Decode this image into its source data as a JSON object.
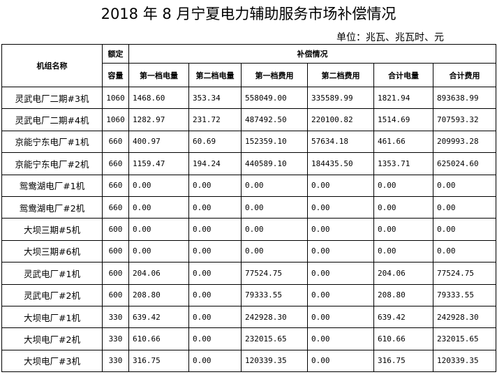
{
  "title": "2018 年 8 月宁夏电力辅助服务市场补偿情况",
  "unit": "单位：兆瓦、兆瓦时、元",
  "headers": {
    "name": "机组名称",
    "capacity_top": "额定",
    "capacity_bottom": "容量",
    "group": "补偿情况",
    "columns": [
      "第一档电量",
      "第二档电量",
      "第一档费用",
      "第二档费用",
      "合计电量",
      "合计费用"
    ]
  },
  "rows": [
    {
      "name": "灵武电厂二期#3机",
      "capacity": "1060",
      "values": [
        "1468.60",
        "353.34",
        "558049.00",
        "335589.99",
        "1821.94",
        "893638.99"
      ]
    },
    {
      "name": "灵武电厂二期#4机",
      "capacity": "1060",
      "values": [
        "1282.97",
        "231.72",
        "487492.50",
        "220100.82",
        "1514.69",
        "707593.32"
      ]
    },
    {
      "name": "京能宁东电厂#1机",
      "capacity": "660",
      "values": [
        "400.97",
        "60.69",
        "152359.10",
        "57634.18",
        "461.66",
        "209993.28"
      ]
    },
    {
      "name": "京能宁东电厂#2机",
      "capacity": "660",
      "values": [
        "1159.47",
        "194.24",
        "440589.10",
        "184435.50",
        "1353.71",
        "625024.60"
      ]
    },
    {
      "name": "鸳鸯湖电厂#1机",
      "capacity": "660",
      "values": [
        "0.00",
        "0.00",
        "0.00",
        "0.00",
        "0.00",
        "0.00"
      ]
    },
    {
      "name": "鸳鸯湖电厂#2机",
      "capacity": "660",
      "values": [
        "0.00",
        "0.00",
        "0.00",
        "0.00",
        "0.00",
        "0.00"
      ]
    },
    {
      "name": "大坝三期#5机",
      "capacity": "600",
      "values": [
        "0.00",
        "0.00",
        "0.00",
        "0.00",
        "0.00",
        "0.00"
      ]
    },
    {
      "name": "大坝三期#6机",
      "capacity": "600",
      "values": [
        "0.00",
        "0.00",
        "0.00",
        "0.00",
        "0.00",
        "0.00"
      ]
    },
    {
      "name": "灵武电厂#1机",
      "capacity": "600",
      "values": [
        "204.06",
        "0.00",
        "77524.75",
        "0.00",
        "204.06",
        "77524.75"
      ]
    },
    {
      "name": "灵武电厂#2机",
      "capacity": "600",
      "values": [
        "208.80",
        "0.00",
        "79333.55",
        "0.00",
        "208.80",
        "79333.55"
      ]
    },
    {
      "name": "大坝电厂#1机",
      "capacity": "330",
      "values": [
        "639.42",
        "0.00",
        "242928.30",
        "0.00",
        "639.42",
        "242928.30"
      ]
    },
    {
      "name": "大坝电厂#2机",
      "capacity": "330",
      "values": [
        "610.66",
        "0.00",
        "232015.65",
        "0.00",
        "610.66",
        "232015.65"
      ]
    },
    {
      "name": "大坝电厂#3机",
      "capacity": "330",
      "values": [
        "316.75",
        "0.00",
        "120339.35",
        "0.00",
        "316.75",
        "120339.35"
      ]
    }
  ]
}
